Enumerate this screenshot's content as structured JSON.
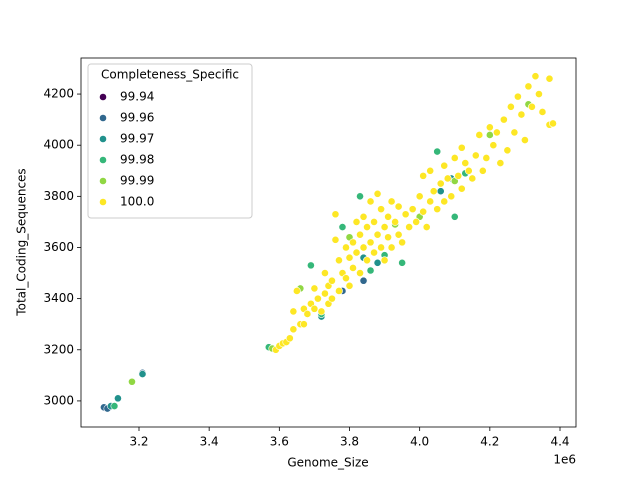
{
  "chart_data": {
    "type": "scatter",
    "xlabel": "Genome_Size",
    "ylabel": "Total_Coding_Sequences",
    "x_offset_label": "1e6",
    "legend_title": "Completeness_Specific",
    "legend_loc": "upper left",
    "xlim": [
      3034700,
      4445600
    ],
    "ylim": [
      2898,
      4341
    ],
    "xticks": [
      {
        "value": 3200000,
        "label": "3.2"
      },
      {
        "value": 3400000,
        "label": "3.4"
      },
      {
        "value": 3600000,
        "label": "3.6"
      },
      {
        "value": 3800000,
        "label": "3.8"
      },
      {
        "value": 4000000,
        "label": "4.0"
      },
      {
        "value": 4200000,
        "label": "4.2"
      },
      {
        "value": 4400000,
        "label": "4.4"
      }
    ],
    "yticks": [
      3000,
      3200,
      3400,
      3600,
      3800,
      4000,
      4200
    ],
    "series": [
      {
        "name": "99.94",
        "color": "#440154",
        "x": [
          3105000
        ],
        "y": [
          2972
        ]
      },
      {
        "name": "99.96",
        "color": "#31688e",
        "x": [
          3100000,
          3110000,
          3210000,
          3780000,
          3840000
        ],
        "y": [
          2975,
          2970,
          3110,
          3430,
          3470
        ]
      },
      {
        "name": "99.97",
        "color": "#21918c",
        "x": [
          3140000,
          3210000,
          3720000,
          3840000,
          3880000,
          4060000,
          4090000,
          3120000
        ],
        "y": [
          3010,
          3105,
          3330,
          3560,
          3540,
          3820,
          3870,
          2980
        ]
      },
      {
        "name": "99.98",
        "color": "#35b779",
        "x": [
          3570000,
          3690000,
          3720000,
          3780000,
          3830000,
          3860000,
          3900000,
          3950000,
          4050000,
          4100000,
          4130000,
          3130000
        ],
        "y": [
          3210,
          3530,
          3340,
          3680,
          3800,
          3510,
          3570,
          3540,
          3975,
          3720,
          3890,
          2980
        ]
      },
      {
        "name": "99.99",
        "color": "#90d743",
        "x": [
          3580000,
          3660000,
          3800000,
          3930000,
          4000000,
          4100000,
          4200000,
          4310000,
          3180000
        ],
        "y": [
          3205,
          3440,
          3640,
          3690,
          3720,
          3860,
          4040,
          4160,
          3075
        ]
      },
      {
        "name": "100.0",
        "color": "#fde725",
        "x": [
          3590000,
          3600000,
          3610000,
          3620000,
          3630000,
          3640000,
          3640000,
          3650000,
          3660000,
          3670000,
          3670000,
          3680000,
          3690000,
          3700000,
          3700000,
          3710000,
          3720000,
          3730000,
          3730000,
          3740000,
          3740000,
          3750000,
          3750000,
          3760000,
          3760000,
          3770000,
          3770000,
          3780000,
          3790000,
          3790000,
          3800000,
          3800000,
          3810000,
          3810000,
          3820000,
          3820000,
          3830000,
          3830000,
          3840000,
          3840000,
          3850000,
          3850000,
          3860000,
          3860000,
          3870000,
          3870000,
          3880000,
          3880000,
          3890000,
          3890000,
          3900000,
          3900000,
          3910000,
          3910000,
          3920000,
          3920000,
          3930000,
          3940000,
          3940000,
          3950000,
          3960000,
          3970000,
          3980000,
          3990000,
          4000000,
          4010000,
          4010000,
          4020000,
          4030000,
          4030000,
          4040000,
          4050000,
          4060000,
          4070000,
          4070000,
          4080000,
          4090000,
          4100000,
          4110000,
          4120000,
          4120000,
          4130000,
          4140000,
          4150000,
          4160000,
          4170000,
          4180000,
          4190000,
          4200000,
          4210000,
          4220000,
          4230000,
          4240000,
          4250000,
          4260000,
          4270000,
          4280000,
          4290000,
          4300000,
          4310000,
          4320000,
          4330000,
          4340000,
          4350000,
          4370000,
          4370000,
          4380000
        ],
        "y": [
          3200,
          3215,
          3225,
          3230,
          3245,
          3280,
          3350,
          3430,
          3300,
          3360,
          3300,
          3340,
          3380,
          3440,
          3360,
          3400,
          3350,
          3500,
          3420,
          3450,
          3380,
          3470,
          3400,
          3730,
          3630,
          3430,
          3550,
          3500,
          3480,
          3600,
          3560,
          3450,
          3620,
          3520,
          3700,
          3580,
          3650,
          3500,
          3720,
          3600,
          3550,
          3680,
          3620,
          3780,
          3580,
          3700,
          3650,
          3810,
          3600,
          3750,
          3680,
          3550,
          3720,
          3640,
          3780,
          3600,
          3700,
          3650,
          3760,
          3620,
          3730,
          3680,
          3750,
          3700,
          3800,
          3740,
          3880,
          3680,
          3780,
          3900,
          3820,
          3750,
          3850,
          3780,
          3920,
          3870,
          3800,
          3950,
          3880,
          3830,
          3990,
          3930,
          3900,
          3870,
          3960,
          4040,
          3900,
          3950,
          4070,
          4000,
          4050,
          3930,
          4100,
          3980,
          4150,
          4050,
          4190,
          4120,
          4020,
          4230,
          4150,
          4270,
          4200,
          4130,
          4260,
          4080,
          4085
        ]
      }
    ]
  }
}
